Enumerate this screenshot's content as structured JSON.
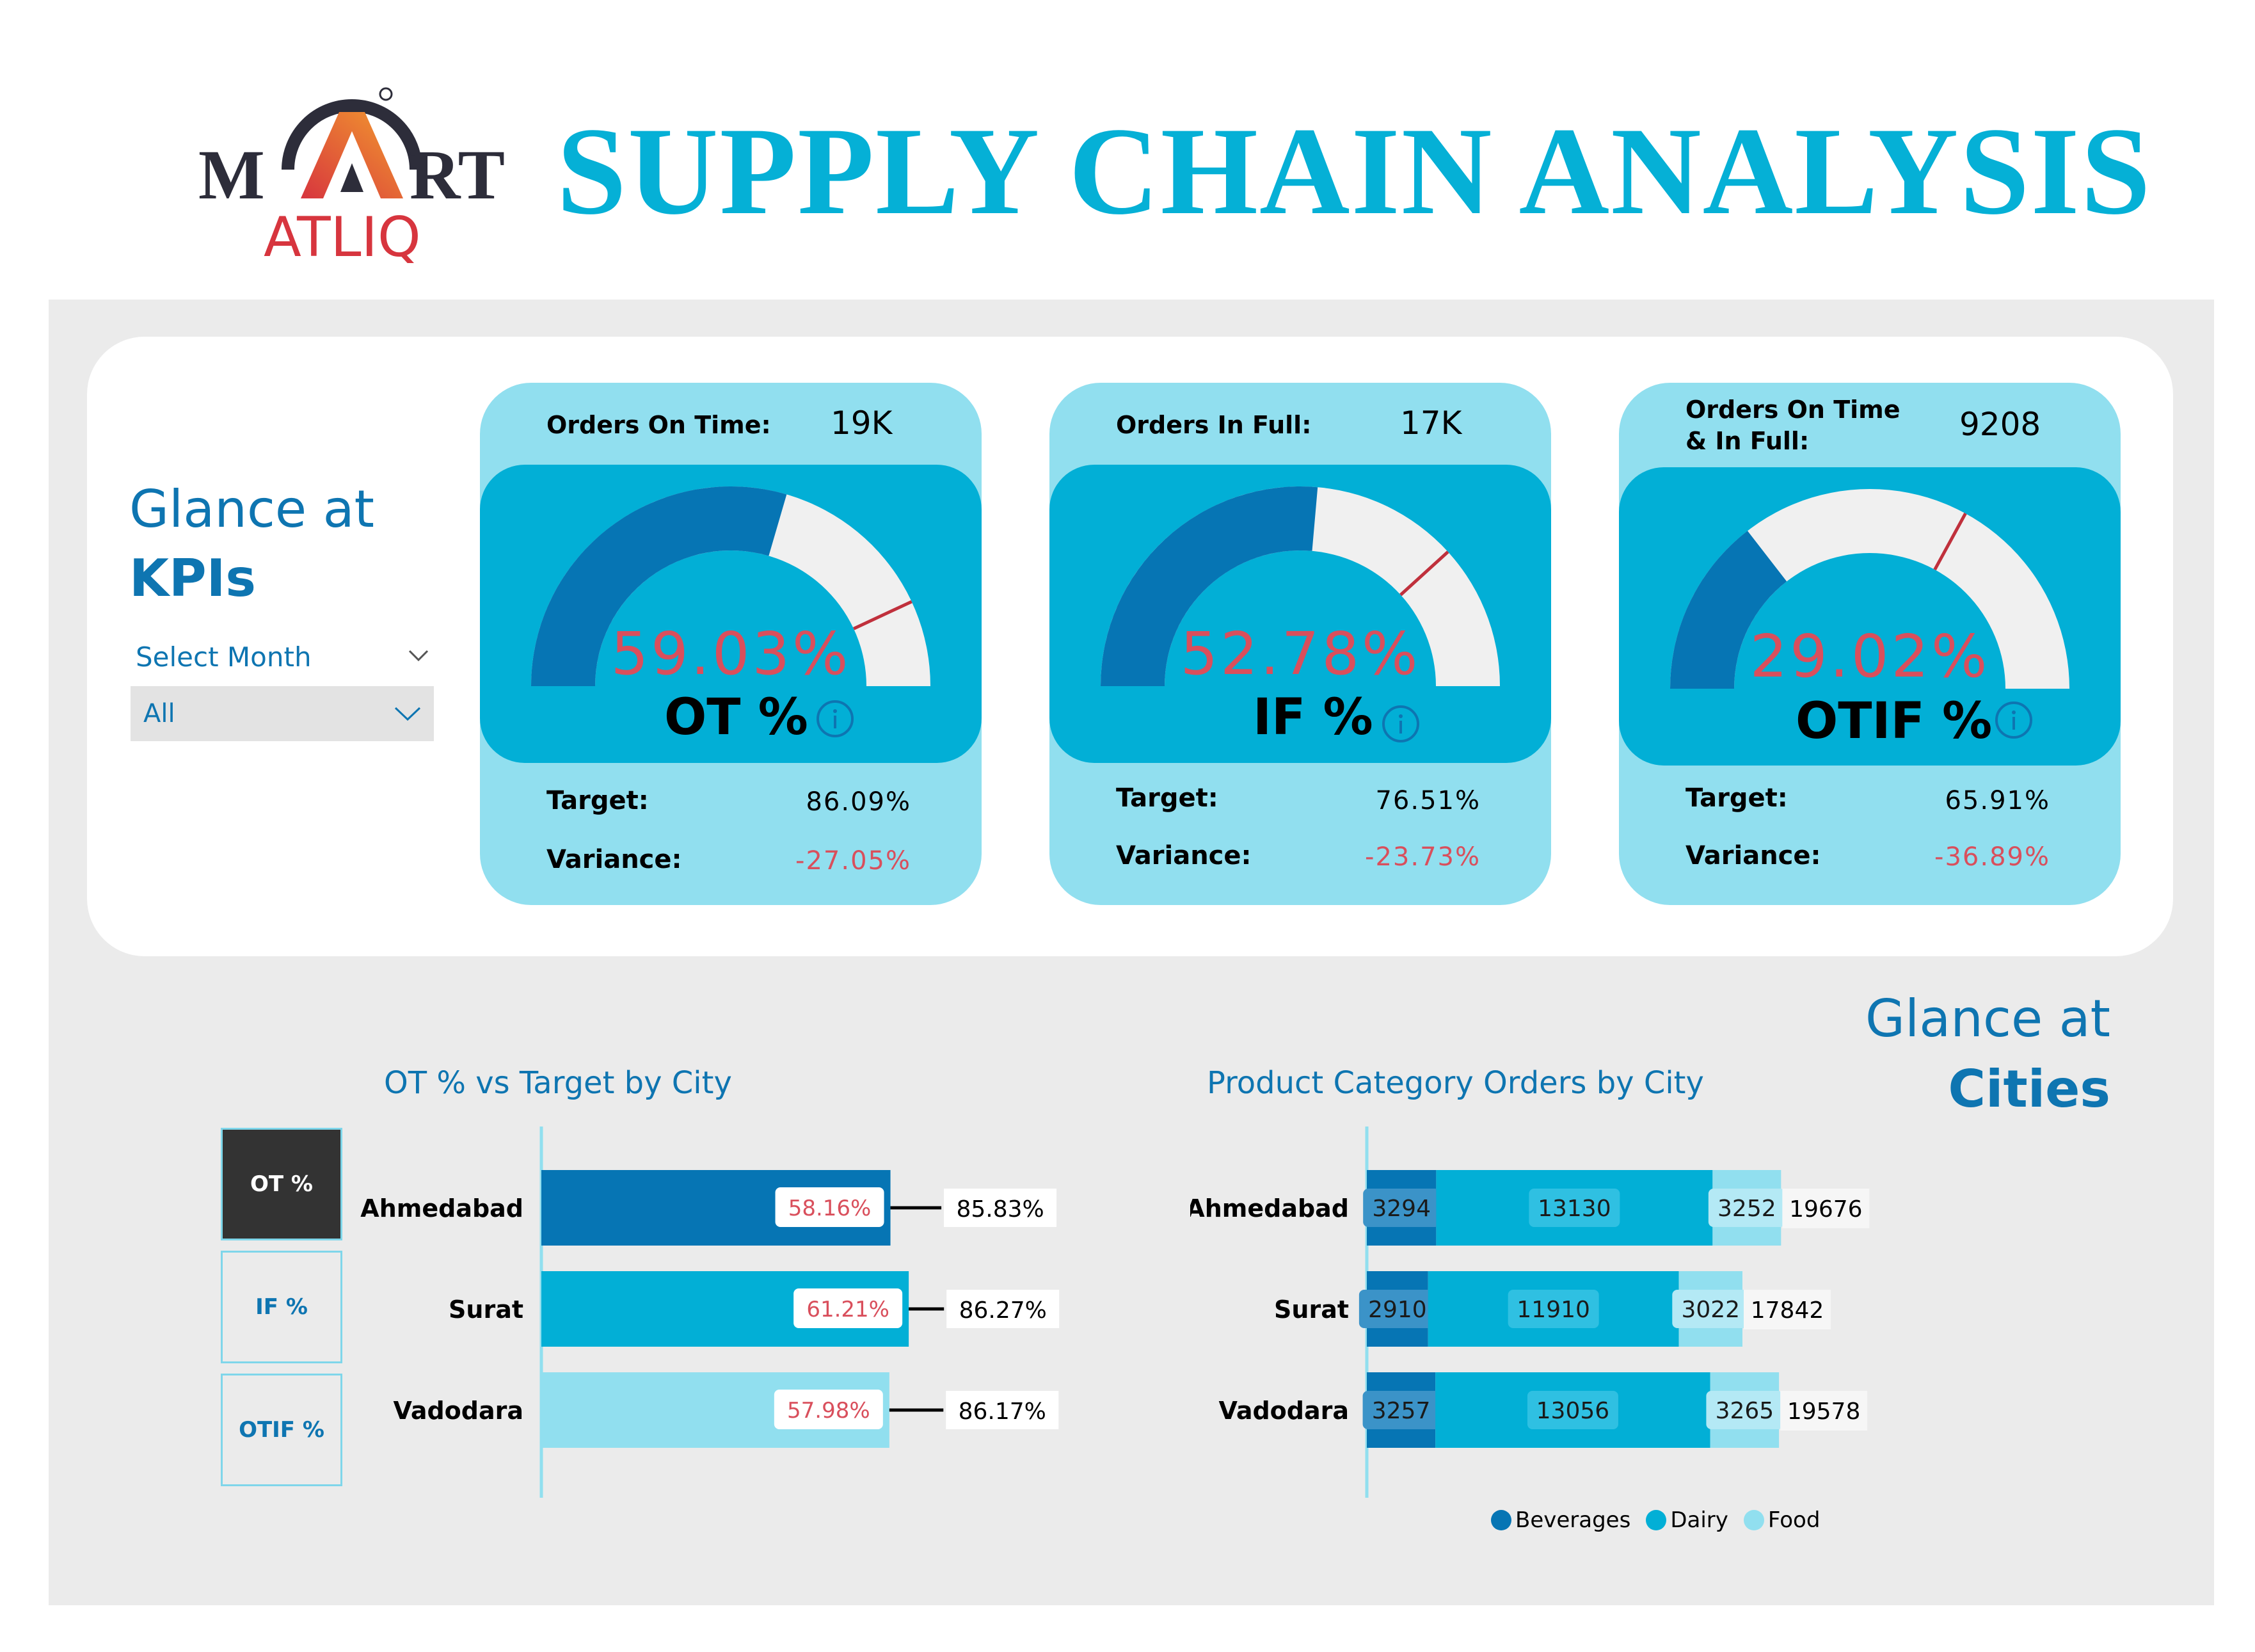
{
  "header": {
    "logo_top": "M",
    "logo_rt": "RT",
    "logo_bottom": "ATLIQ",
    "title": "SUPPLY CHAIN ANALYSIS"
  },
  "kpi_section": {
    "glance_line1": "Glance at",
    "glance_line2": "KPIs",
    "month_filter_label": "Select Month",
    "month_filter_value": "All"
  },
  "kpis": [
    {
      "header_label": "Orders On Time:",
      "header_value": "19K",
      "percent_text": "59.03%",
      "percent": 59.03,
      "target_percent": 86.09,
      "name": "OT %",
      "target_label": "Target:",
      "target_value": "86.09%",
      "variance_label": "Variance:",
      "variance_value": "-27.05%"
    },
    {
      "header_label": "Orders In Full:",
      "header_value": "17K",
      "percent_text": "52.78%",
      "percent": 52.78,
      "target_percent": 76.51,
      "name": "IF %",
      "target_label": "Target:",
      "target_value": "76.51%",
      "variance_label": "Variance:",
      "variance_value": "-23.73%"
    },
    {
      "header_label": "Orders On Time & In Full:",
      "header_value": "9208",
      "percent_text": "29.02%",
      "percent": 29.02,
      "target_percent": 65.91,
      "name": "OTIF %",
      "target_label": "Target:",
      "target_value": "65.91%",
      "variance_label": "Variance:",
      "variance_value": "-36.89%"
    }
  ],
  "cities_section": {
    "glance_line1": "Glance at",
    "glance_line2": "Cities",
    "toggles": [
      "OT %",
      "IF %",
      "OTIF %"
    ],
    "active_toggle": "OT %"
  },
  "colors": {
    "dark_blue": "#0675b4",
    "mid_blue": "#02afd6",
    "light_blue": "#91dfef",
    "red": "#d94f5c",
    "title": "#05b0d6"
  },
  "chart_data": [
    {
      "type": "bar",
      "title": "OT % vs Target by City",
      "categories": [
        "Ahmedabad",
        "Surat",
        "Vadodara"
      ],
      "series": [
        {
          "values": [
            58.16,
            61.21,
            57.98
          ],
          "labels": [
            "58.16%",
            "61.21%",
            "57.98%"
          ]
        },
        {
          "values": [
            85.83,
            86.27,
            86.17
          ],
          "labels": [
            "85.83%",
            "86.27%",
            "86.17%"
          ]
        }
      ],
      "orientation": "horizontal"
    },
    {
      "type": "bar",
      "title": "Product Category Orders by City",
      "categories": [
        "Ahmedabad",
        "Surat",
        "Vadodara"
      ],
      "stacked": true,
      "orientation": "horizontal",
      "series": [
        {
          "name": "Beverages",
          "values": [
            3294,
            2910,
            3257
          ]
        },
        {
          "name": "Dairy",
          "values": [
            13130,
            11910,
            13056
          ]
        },
        {
          "name": "Food",
          "values": [
            3252,
            3022,
            3265
          ]
        }
      ],
      "totals": [
        19676,
        17842,
        19578
      ],
      "legend": "bottom"
    }
  ]
}
